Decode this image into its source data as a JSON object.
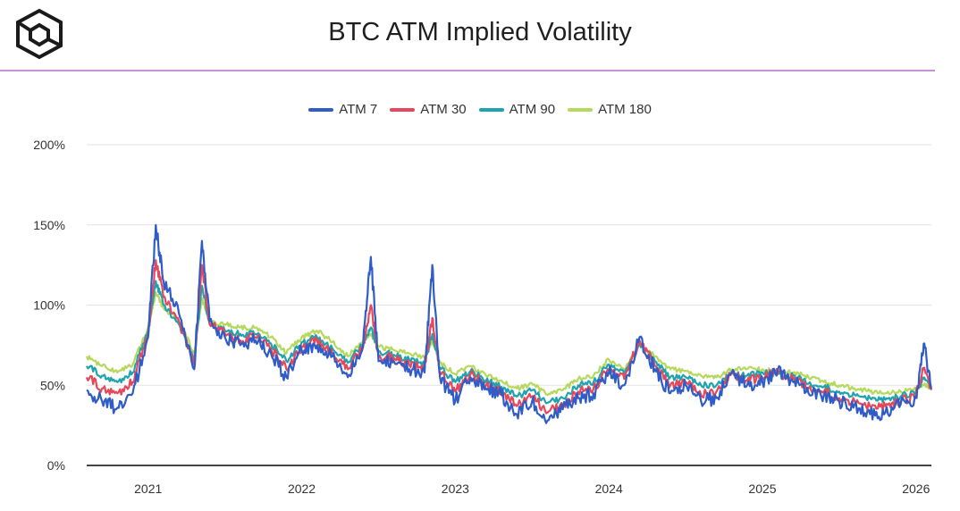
{
  "title": "BTC ATM Implied Volatility",
  "logo_icon": "cube-logo-icon",
  "colors": {
    "accent_rule": "#c98fd8"
  },
  "chart_data": {
    "type": "line",
    "title": "BTC ATM Implied Volatility",
    "xlabel": "",
    "ylabel": "",
    "xlim": [
      2020.6,
      2026.1
    ],
    "ylim": [
      0,
      200
    ],
    "y_ticks": [
      {
        "value": 0,
        "label": "0%"
      },
      {
        "value": 50,
        "label": "50%"
      },
      {
        "value": 100,
        "label": "100%"
      },
      {
        "value": 150,
        "label": "150%"
      },
      {
        "value": 200,
        "label": "200%"
      }
    ],
    "x_ticks": [
      {
        "value": 2021.0,
        "label": "2021"
      },
      {
        "value": 2022.0,
        "label": "2022"
      },
      {
        "value": 2023.0,
        "label": "2023"
      },
      {
        "value": 2024.0,
        "label": "2024"
      },
      {
        "value": 2025.0,
        "label": "2025"
      },
      {
        "value": 2026.0,
        "label": "2026"
      }
    ],
    "grid": true,
    "legend_position": "top-center",
    "x": [
      2020.6,
      2020.7,
      2020.8,
      2020.9,
      2021.0,
      2021.05,
      2021.1,
      2021.2,
      2021.3,
      2021.35,
      2021.4,
      2021.5,
      2021.6,
      2021.7,
      2021.8,
      2021.9,
      2022.0,
      2022.1,
      2022.2,
      2022.3,
      2022.4,
      2022.45,
      2022.5,
      2022.6,
      2022.7,
      2022.8,
      2022.85,
      2022.9,
      2023.0,
      2023.1,
      2023.2,
      2023.3,
      2023.4,
      2023.5,
      2023.6,
      2023.7,
      2023.8,
      2023.9,
      2024.0,
      2024.1,
      2024.2,
      2024.3,
      2024.4,
      2024.5,
      2024.6,
      2024.7,
      2024.8,
      2024.9,
      2025.0,
      2025.1,
      2025.2,
      2025.3,
      2025.4,
      2025.5,
      2025.6,
      2025.7,
      2025.8,
      2025.9,
      2026.0,
      2026.05,
      2026.1
    ],
    "series": [
      {
        "name": "ATM 7",
        "color": "#2f5cc7",
        "values": [
          47,
          40,
          36,
          45,
          80,
          150,
          115,
          95,
          60,
          140,
          90,
          80,
          75,
          78,
          70,
          55,
          72,
          75,
          68,
          55,
          75,
          130,
          65,
          65,
          60,
          58,
          125,
          55,
          40,
          55,
          48,
          44,
          32,
          40,
          28,
          35,
          42,
          45,
          58,
          50,
          80,
          60,
          45,
          50,
          40,
          42,
          58,
          50,
          52,
          60,
          52,
          45,
          44,
          40,
          38,
          32,
          33,
          38,
          42,
          76,
          48
        ]
      },
      {
        "name": "ATM 30",
        "color": "#e5485a",
        "values": [
          55,
          48,
          45,
          52,
          82,
          128,
          105,
          90,
          63,
          125,
          88,
          82,
          78,
          80,
          73,
          60,
          74,
          78,
          70,
          60,
          74,
          100,
          68,
          67,
          63,
          60,
          92,
          58,
          46,
          57,
          50,
          46,
          37,
          43,
          33,
          38,
          46,
          48,
          60,
          54,
          78,
          62,
          50,
          52,
          44,
          46,
          58,
          53,
          55,
          58,
          54,
          48,
          46,
          42,
          40,
          37,
          37,
          40,
          44,
          60,
          47
        ]
      },
      {
        "name": "ATM 90",
        "color": "#1fa3ae",
        "values": [
          62,
          56,
          52,
          58,
          84,
          115,
          100,
          88,
          66,
          112,
          88,
          84,
          82,
          82,
          76,
          65,
          77,
          80,
          73,
          64,
          76,
          86,
          71,
          69,
          66,
          63,
          82,
          61,
          52,
          59,
          53,
          49,
          43,
          47,
          39,
          42,
          50,
          52,
          63,
          57,
          76,
          65,
          55,
          55,
          50,
          50,
          58,
          56,
          58,
          57,
          56,
          51,
          49,
          46,
          44,
          42,
          41,
          43,
          46,
          54,
          48
        ]
      },
      {
        "name": "ATM 180",
        "color": "#b6d85c",
        "values": [
          68,
          62,
          58,
          63,
          86,
          108,
          98,
          90,
          70,
          104,
          90,
          88,
          86,
          86,
          80,
          70,
          80,
          84,
          77,
          68,
          78,
          82,
          74,
          72,
          70,
          67,
          78,
          64,
          57,
          62,
          56,
          53,
          48,
          51,
          44,
          47,
          54,
          56,
          66,
          60,
          75,
          68,
          60,
          59,
          56,
          55,
          60,
          60,
          60,
          58,
          58,
          55,
          52,
          50,
          48,
          46,
          45,
          46,
          48,
          50,
          49
        ]
      }
    ]
  }
}
